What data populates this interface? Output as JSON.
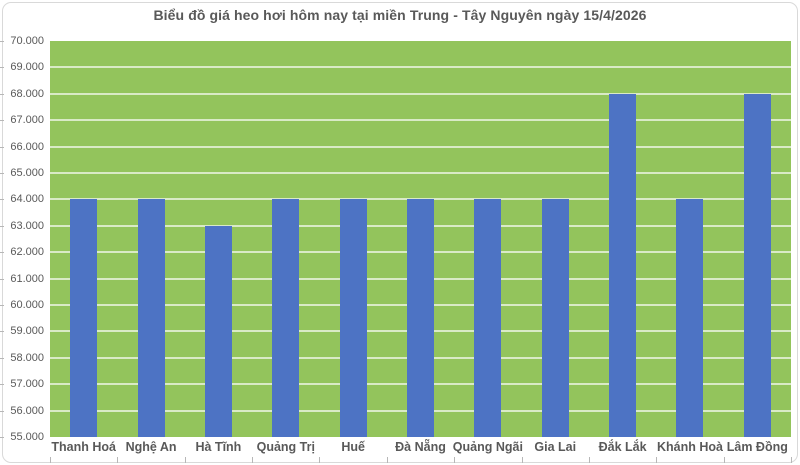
{
  "colors": {
    "plot_bg": "#93c45c",
    "bar": "#4d73c4",
    "gridline": "rgba(255,255,255,0.65)",
    "text": "#595959",
    "frame": "#d9d9d9",
    "tick": "#b7b7b7"
  },
  "chart_data": {
    "type": "bar",
    "title": "Biểu đồ giá heo hơi hôm nay tại miền Trung - Tây Nguyên ngày 15/4/2026",
    "categories": [
      "Thanh Hoá",
      "Nghệ An",
      "Hà Tĩnh",
      "Quảng Trị",
      "Huế",
      "Đà Nẵng",
      "Quảng Ngãi",
      "Gia Lai",
      "Đắk Lắk",
      "Khánh Hoà",
      "Lâm Đồng"
    ],
    "values": [
      64000,
      64000,
      63000,
      64000,
      64000,
      64000,
      64000,
      64000,
      68000,
      64000,
      68000
    ],
    "xlabel": "",
    "ylabel": "",
    "ylim": [
      55000,
      70000
    ],
    "ytick_step": 1000,
    "ytick_labels": [
      "70.000",
      "69.000",
      "68.000",
      "67.000",
      "66.000",
      "65.000",
      "64.000",
      "63.000",
      "62.000",
      "61.000",
      "60.000",
      "59.000",
      "58.000",
      "57.000",
      "56.000",
      "55.000"
    ],
    "grid": true,
    "legend": false,
    "bar_gap_ratio": 2.5
  }
}
